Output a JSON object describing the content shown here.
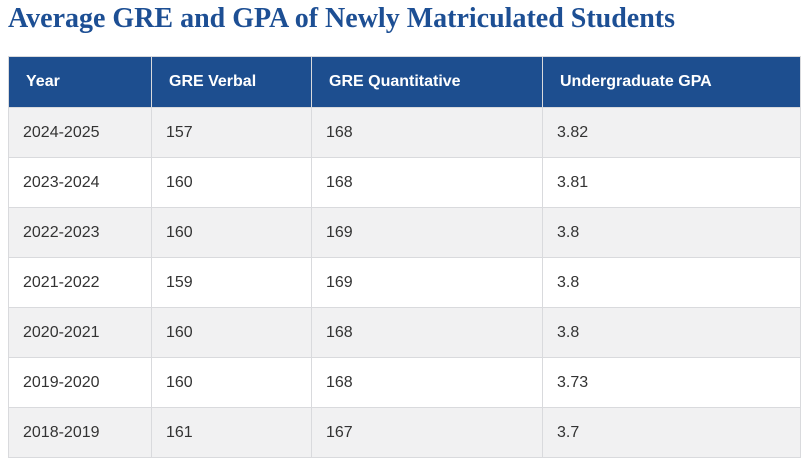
{
  "page": {
    "title": "Average GRE and GPA of Newly Matriculated Students"
  },
  "table": {
    "columns": [
      "Year",
      "GRE Verbal",
      "GRE Quantitative",
      "Undergraduate GPA"
    ],
    "rows": [
      [
        "2024-2025",
        "157",
        "168",
        "3.82"
      ],
      [
        "2023-2024",
        "160",
        "168",
        "3.81"
      ],
      [
        "2022-2023",
        "160",
        "169",
        "3.8"
      ],
      [
        "2021-2022",
        "159",
        "169",
        "3.8"
      ],
      [
        "2020-2021",
        "160",
        "168",
        "3.8"
      ],
      [
        "2019-2020",
        "160",
        "168",
        "3.73"
      ],
      [
        "2018-2019",
        "161",
        "167",
        "3.7"
      ]
    ]
  },
  "chart_data": {
    "type": "table",
    "title": "Average GRE and GPA of Newly Matriculated Students",
    "columns": [
      "Year",
      "GRE Verbal",
      "GRE Quantitative",
      "Undergraduate GPA"
    ],
    "categories": [
      "2024-2025",
      "2023-2024",
      "2022-2023",
      "2021-2022",
      "2020-2021",
      "2019-2020",
      "2018-2019"
    ],
    "series": [
      {
        "name": "GRE Verbal",
        "values": [
          157,
          160,
          160,
          159,
          160,
          160,
          161
        ]
      },
      {
        "name": "GRE Quantitative",
        "values": [
          168,
          168,
          169,
          169,
          168,
          168,
          167
        ]
      },
      {
        "name": "Undergraduate GPA",
        "values": [
          3.82,
          3.81,
          3.8,
          3.8,
          3.8,
          3.73,
          3.7
        ]
      }
    ],
    "layout": {
      "header_style": "solid fill",
      "row_striping": "odd rows shaded",
      "grid": "full cell borders"
    }
  },
  "colors": {
    "title_blue": "#1d4f94",
    "header_blue": "#1d4e8f",
    "row_alt_gray": "#f1f1f2",
    "border": "#d9dadd",
    "body_text": "#333333"
  }
}
